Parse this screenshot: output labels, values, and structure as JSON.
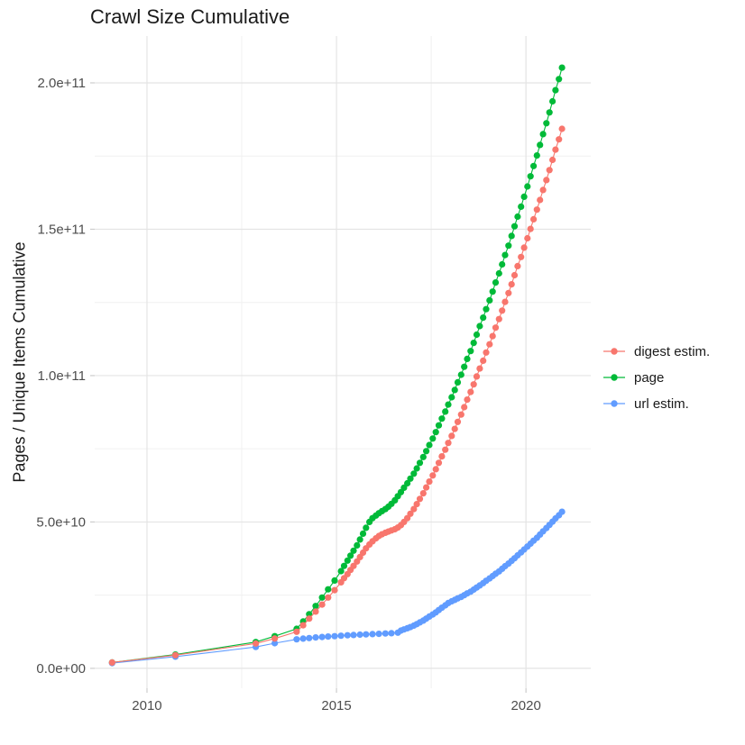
{
  "title": "Crawl Size Cumulative",
  "y_axis_title": "Pages / Unique Items Cumulative",
  "legend": {
    "items": [
      {
        "label": "digest estim.",
        "color": "#F8766D"
      },
      {
        "label": "page",
        "color": "#00BA38"
      },
      {
        "label": "url estim.",
        "color": "#619CFF"
      }
    ]
  },
  "colors": {
    "background": "#ffffff",
    "grid_major": "#e4e4e4",
    "grid_minor": "#f0f0f0",
    "tick_mark": "#cccccc",
    "axis_text": "#4d4d4d",
    "title_text": "#1a1a1a"
  },
  "chart_data": {
    "type": "line",
    "title": "Crawl Size Cumulative",
    "xlabel": "",
    "ylabel": "Pages / Unique Items Cumulative",
    "legend_position": "right",
    "grid": true,
    "marker": "point",
    "y_values_unit": "billions (1e9 items)",
    "xlim": [
      2008.62,
      2021.71
    ],
    "ylim_billions": [
      -6.8,
      216.0
    ],
    "x_ticks": {
      "values": [
        2010,
        2015,
        2020
      ],
      "labels": [
        "2010",
        "2015",
        "2020"
      ],
      "minor": [
        2012.5,
        2017.5
      ]
    },
    "y_ticks": {
      "values_billions": [
        0,
        50,
        100,
        150,
        200
      ],
      "labels": [
        "0.0e+00",
        "5.0e+10",
        "1.0e+11",
        "1.5e+11",
        "2.0e+11"
      ],
      "minor_billions": [
        25,
        75,
        125,
        175
      ]
    },
    "series": [
      {
        "name": "page",
        "color": "#00BA38",
        "points": [
          [
            2009.08,
            2.0
          ],
          [
            2010.75,
            4.7
          ],
          [
            2012.87,
            9.0
          ],
          [
            2013.37,
            11.0
          ],
          [
            2013.95,
            13.5
          ],
          [
            2014.12,
            16.0
          ],
          [
            2014.28,
            18.5
          ],
          [
            2014.45,
            21.3
          ],
          [
            2014.62,
            24.2
          ],
          [
            2014.78,
            27.0
          ],
          [
            2014.95,
            30.0
          ],
          [
            2015.12,
            33.2
          ],
          [
            2015.2,
            35.0
          ],
          [
            2015.29,
            36.8
          ],
          [
            2015.37,
            38.5
          ],
          [
            2015.45,
            40.2
          ],
          [
            2015.54,
            42.0
          ],
          [
            2015.62,
            44.0
          ],
          [
            2015.7,
            46.0
          ],
          [
            2015.78,
            48.0
          ],
          [
            2015.87,
            50.0
          ],
          [
            2015.95,
            51.3
          ],
          [
            2016.04,
            52.2
          ],
          [
            2016.12,
            53.0
          ],
          [
            2016.2,
            53.7
          ],
          [
            2016.29,
            54.4
          ],
          [
            2016.37,
            55.2
          ],
          [
            2016.45,
            56.2
          ],
          [
            2016.54,
            57.4
          ],
          [
            2016.62,
            58.8
          ],
          [
            2016.7,
            60.2
          ],
          [
            2016.78,
            61.7
          ],
          [
            2016.87,
            63.2
          ],
          [
            2016.95,
            64.8
          ],
          [
            2017.04,
            66.5
          ],
          [
            2017.12,
            68.3
          ],
          [
            2017.2,
            70.2
          ],
          [
            2017.29,
            72.2
          ],
          [
            2017.37,
            74.2
          ],
          [
            2017.45,
            76.3
          ],
          [
            2017.54,
            78.5
          ],
          [
            2017.62,
            80.7
          ],
          [
            2017.7,
            83.0
          ],
          [
            2017.78,
            85.3
          ],
          [
            2017.87,
            87.7
          ],
          [
            2017.95,
            90.1
          ],
          [
            2018.04,
            92.6
          ],
          [
            2018.12,
            95.1
          ],
          [
            2018.2,
            97.7
          ],
          [
            2018.29,
            100.3
          ],
          [
            2018.37,
            103.0
          ],
          [
            2018.45,
            105.7
          ],
          [
            2018.54,
            108.4
          ],
          [
            2018.62,
            111.2
          ],
          [
            2018.7,
            114.0
          ],
          [
            2018.78,
            116.9
          ],
          [
            2018.87,
            119.8
          ],
          [
            2018.95,
            122.7
          ],
          [
            2019.04,
            125.7
          ],
          [
            2019.12,
            128.7
          ],
          [
            2019.2,
            131.8
          ],
          [
            2019.29,
            134.9
          ],
          [
            2019.37,
            138.0
          ],
          [
            2019.45,
            141.2
          ],
          [
            2019.54,
            144.4
          ],
          [
            2019.62,
            147.7
          ],
          [
            2019.7,
            151.0
          ],
          [
            2019.78,
            154.3
          ],
          [
            2019.87,
            157.7
          ],
          [
            2019.95,
            161.1
          ],
          [
            2020.04,
            164.6
          ],
          [
            2020.12,
            168.1
          ],
          [
            2020.2,
            171.6
          ],
          [
            2020.29,
            175.2
          ],
          [
            2020.37,
            178.8
          ],
          [
            2020.45,
            182.5
          ],
          [
            2020.54,
            186.2
          ],
          [
            2020.62,
            189.9
          ],
          [
            2020.7,
            193.7
          ],
          [
            2020.78,
            197.5
          ],
          [
            2020.87,
            201.3
          ],
          [
            2020.95,
            205.2
          ]
        ]
      },
      {
        "name": "url estim.",
        "color": "#619CFF",
        "points": [
          [
            2009.08,
            1.8
          ],
          [
            2010.75,
            4.0
          ],
          [
            2012.87,
            7.3
          ],
          [
            2013.37,
            8.6
          ],
          [
            2013.95,
            9.9
          ],
          [
            2014.12,
            10.15
          ],
          [
            2014.28,
            10.35
          ],
          [
            2014.45,
            10.55
          ],
          [
            2014.62,
            10.7
          ],
          [
            2014.78,
            10.85
          ],
          [
            2014.95,
            11.0
          ],
          [
            2015.12,
            11.15
          ],
          [
            2015.29,
            11.3
          ],
          [
            2015.45,
            11.4
          ],
          [
            2015.62,
            11.5
          ],
          [
            2015.78,
            11.6
          ],
          [
            2015.95,
            11.7
          ],
          [
            2016.12,
            11.8
          ],
          [
            2016.29,
            11.9
          ],
          [
            2016.45,
            12.0
          ],
          [
            2016.62,
            12.2
          ],
          [
            2016.7,
            12.9
          ],
          [
            2016.78,
            13.3
          ],
          [
            2016.87,
            13.7
          ],
          [
            2016.95,
            14.1
          ],
          [
            2017.04,
            14.6
          ],
          [
            2017.12,
            15.1
          ],
          [
            2017.2,
            15.7
          ],
          [
            2017.29,
            16.3
          ],
          [
            2017.37,
            17.0
          ],
          [
            2017.45,
            17.7
          ],
          [
            2017.54,
            18.4
          ],
          [
            2017.62,
            19.1
          ],
          [
            2017.7,
            19.9
          ],
          [
            2017.78,
            20.7
          ],
          [
            2017.87,
            21.5
          ],
          [
            2017.95,
            22.3
          ],
          [
            2018.04,
            22.9
          ],
          [
            2018.12,
            23.4
          ],
          [
            2018.2,
            23.9
          ],
          [
            2018.29,
            24.4
          ],
          [
            2018.37,
            25.0
          ],
          [
            2018.45,
            25.6
          ],
          [
            2018.54,
            26.2
          ],
          [
            2018.62,
            26.9
          ],
          [
            2018.7,
            27.6
          ],
          [
            2018.78,
            28.3
          ],
          [
            2018.87,
            29.1
          ],
          [
            2018.95,
            29.9
          ],
          [
            2019.04,
            30.7
          ],
          [
            2019.12,
            31.5
          ],
          [
            2019.2,
            32.3
          ],
          [
            2019.29,
            33.1
          ],
          [
            2019.37,
            34.0
          ],
          [
            2019.45,
            34.9
          ],
          [
            2019.54,
            35.8
          ],
          [
            2019.62,
            36.7
          ],
          [
            2019.7,
            37.6
          ],
          [
            2019.78,
            38.6
          ],
          [
            2019.87,
            39.6
          ],
          [
            2019.95,
            40.6
          ],
          [
            2020.04,
            41.6
          ],
          [
            2020.12,
            42.6
          ],
          [
            2020.2,
            43.6
          ],
          [
            2020.29,
            44.6
          ],
          [
            2020.37,
            45.7
          ],
          [
            2020.45,
            46.8
          ],
          [
            2020.54,
            47.9
          ],
          [
            2020.62,
            49.0
          ],
          [
            2020.7,
            50.1
          ],
          [
            2020.78,
            51.2
          ],
          [
            2020.87,
            52.3
          ],
          [
            2020.95,
            53.5
          ]
        ]
      },
      {
        "name": "digest estim.",
        "color": "#F8766D",
        "points": [
          [
            2009.08,
            2.0
          ],
          [
            2010.75,
            4.5
          ],
          [
            2012.87,
            8.5
          ],
          [
            2013.37,
            10.2
          ],
          [
            2013.95,
            12.5
          ],
          [
            2014.12,
            14.7
          ],
          [
            2014.28,
            17.0
          ],
          [
            2014.45,
            19.4
          ],
          [
            2014.62,
            21.8
          ],
          [
            2014.78,
            24.2
          ],
          [
            2014.95,
            26.7
          ],
          [
            2015.12,
            29.4
          ],
          [
            2015.2,
            30.8
          ],
          [
            2015.29,
            32.2
          ],
          [
            2015.37,
            33.6
          ],
          [
            2015.45,
            35.0
          ],
          [
            2015.54,
            36.5
          ],
          [
            2015.62,
            38.0
          ],
          [
            2015.7,
            39.5
          ],
          [
            2015.78,
            41.0
          ],
          [
            2015.87,
            42.3
          ],
          [
            2015.95,
            43.4
          ],
          [
            2016.04,
            44.4
          ],
          [
            2016.12,
            45.2
          ],
          [
            2016.2,
            45.8
          ],
          [
            2016.29,
            46.3
          ],
          [
            2016.37,
            46.7
          ],
          [
            2016.45,
            47.1
          ],
          [
            2016.54,
            47.5
          ],
          [
            2016.62,
            48.1
          ],
          [
            2016.7,
            48.9
          ],
          [
            2016.78,
            50.0
          ],
          [
            2016.87,
            51.3
          ],
          [
            2016.95,
            52.8
          ],
          [
            2017.04,
            54.4
          ],
          [
            2017.12,
            56.1
          ],
          [
            2017.2,
            57.9
          ],
          [
            2017.29,
            59.8
          ],
          [
            2017.37,
            61.8
          ],
          [
            2017.45,
            63.8
          ],
          [
            2017.54,
            65.9
          ],
          [
            2017.62,
            68.0
          ],
          [
            2017.7,
            70.2
          ],
          [
            2017.78,
            72.4
          ],
          [
            2017.87,
            74.7
          ],
          [
            2017.95,
            77.0
          ],
          [
            2018.04,
            79.4
          ],
          [
            2018.12,
            81.8
          ],
          [
            2018.2,
            84.2
          ],
          [
            2018.29,
            86.7
          ],
          [
            2018.37,
            89.2
          ],
          [
            2018.45,
            91.8
          ],
          [
            2018.54,
            94.4
          ],
          [
            2018.62,
            97.0
          ],
          [
            2018.7,
            99.7
          ],
          [
            2018.78,
            102.4
          ],
          [
            2018.87,
            105.1
          ],
          [
            2018.95,
            107.9
          ],
          [
            2019.04,
            110.7
          ],
          [
            2019.12,
            113.5
          ],
          [
            2019.2,
            116.4
          ],
          [
            2019.29,
            119.3
          ],
          [
            2019.37,
            122.2
          ],
          [
            2019.45,
            125.2
          ],
          [
            2019.54,
            128.2
          ],
          [
            2019.62,
            131.2
          ],
          [
            2019.7,
            134.3
          ],
          [
            2019.78,
            137.4
          ],
          [
            2019.87,
            140.5
          ],
          [
            2019.95,
            143.7
          ],
          [
            2020.04,
            146.9
          ],
          [
            2020.12,
            150.1
          ],
          [
            2020.2,
            153.4
          ],
          [
            2020.29,
            156.7
          ],
          [
            2020.37,
            160.0
          ],
          [
            2020.45,
            163.4
          ],
          [
            2020.54,
            166.8
          ],
          [
            2020.62,
            170.2
          ],
          [
            2020.7,
            173.7
          ],
          [
            2020.78,
            177.2
          ],
          [
            2020.87,
            180.7
          ],
          [
            2020.95,
            184.3
          ]
        ]
      }
    ]
  }
}
